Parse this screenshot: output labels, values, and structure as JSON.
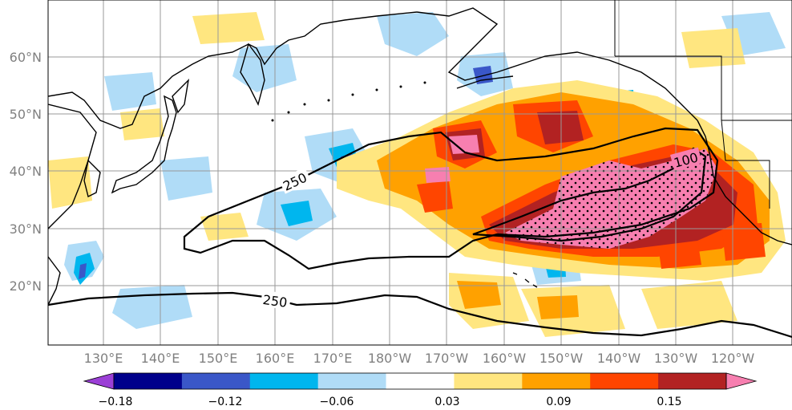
{
  "map": {
    "lat_labels": [
      "60°N",
      "50°N",
      "40°N",
      "30°N",
      "20°N"
    ],
    "lon_labels": [
      "130°E",
      "140°E",
      "150°E",
      "160°E",
      "170°E",
      "180°W",
      "170°W",
      "160°W",
      "150°W",
      "140°W",
      "130°W",
      "120°W"
    ],
    "contour_labels": [
      "250",
      "250",
      "100"
    ],
    "stipple_note": "",
    "colors": {
      "land_outline": "#000000",
      "grid": "#999999"
    }
  },
  "colorbar": {
    "tick_labels": [
      "−0.18",
      "−0.12",
      "−0.06",
      "0.03",
      "0.09",
      "0.15"
    ],
    "colors": [
      "#9b3fd6",
      "#00008b",
      "#3a57c8",
      "#00b6ee",
      "#b0dcf7",
      "#ffffff",
      "#ffe680",
      "#ffa100",
      "#ff4500",
      "#b22222",
      "#f77fb0"
    ]
  }
}
